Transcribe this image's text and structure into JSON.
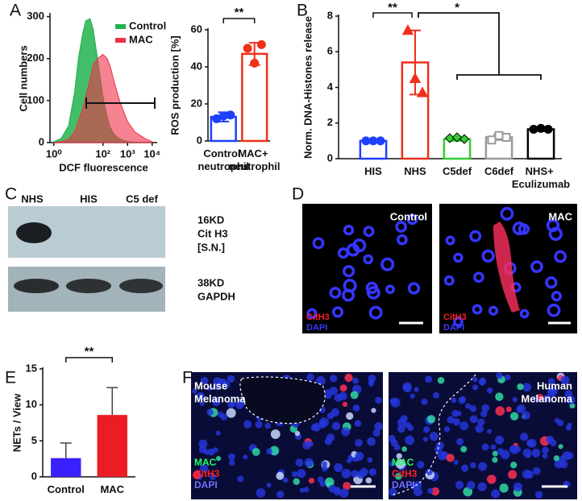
{
  "chart_data": [
    {
      "type": "area",
      "ylabel": "Cell numbers",
      "xlabel": "DCF fluorescence",
      "log_x": true,
      "legend": "top-right",
      "x": [
        1,
        2,
        4,
        7,
        10,
        15,
        20,
        30,
        40,
        60,
        100,
        150,
        200,
        300,
        500,
        1000,
        2000,
        5000,
        10000
      ],
      "series": [
        {
          "name": "Control",
          "color": "#22b14c",
          "values": [
            2,
            10,
            40,
            120,
            200,
            260,
            290,
            295,
            270,
            200,
            110,
            60,
            35,
            18,
            8,
            3,
            1,
            0,
            0
          ]
        },
        {
          "name": "MAC",
          "color": "#f0304a",
          "values": [
            0,
            2,
            8,
            25,
            50,
            80,
            110,
            150,
            185,
            200,
            210,
            200,
            180,
            140,
            95,
            50,
            25,
            10,
            2
          ]
        }
      ],
      "xlim": [
        0.7,
        16000
      ],
      "ylim": [
        0,
        305
      ],
      "xticks": [
        {
          "value": 1,
          "label": "10⁰"
        },
        {
          "value": 100,
          "label": "10²"
        },
        {
          "value": 1000,
          "label": "10³"
        },
        {
          "value": 10000,
          "label": "10⁴"
        }
      ],
      "yticks": [
        0,
        100,
        200,
        300
      ]
    },
    {
      "type": "bar",
      "ylabel": "ROS production [%]",
      "style": "outline",
      "categories": [
        "Control neutrophil",
        "MAC+ neutrophil"
      ],
      "values": [
        13,
        47
      ],
      "errors": [
        2.5,
        6
      ],
      "points": [
        [
          12,
          13.5,
          14
        ],
        [
          50,
          42,
          52
        ]
      ],
      "colors": [
        "#1f3fff",
        "#f0301a"
      ],
      "markers": [
        "circle",
        "circle"
      ],
      "ylim": [
        0,
        60
      ],
      "yticks": [
        0,
        20,
        40,
        60
      ],
      "annotations": [
        "**"
      ]
    },
    {
      "type": "bar",
      "ylabel": "Norm. DNA-Histones release",
      "style": "outline",
      "categories": [
        "HIS",
        "NHS",
        "C5def",
        "C6def",
        "NHS+ Eculizumab"
      ],
      "values": [
        1.0,
        5.4,
        1.1,
        1.2,
        1.65
      ],
      "errors": [
        0.05,
        1.8,
        0.1,
        0.15,
        0.1
      ],
      "points": [
        [
          1,
          1,
          1
        ],
        [
          7.2,
          4.5,
          3.7
        ],
        [
          1.15,
          1.2,
          1.1
        ],
        [
          1.05,
          1.3,
          1.2
        ],
        [
          1.65,
          1.7,
          1.65
        ]
      ],
      "colors": [
        "#1f3fff",
        "#f0301a",
        "#33cc33",
        "#999999",
        "#000000"
      ],
      "markers": [
        "circle",
        "triangle",
        "diamond",
        "square",
        "circle"
      ],
      "ylim": [
        0,
        8
      ],
      "yticks": [
        0,
        2,
        4,
        6,
        8
      ],
      "annotations": [
        "**",
        "*"
      ]
    },
    {
      "type": "bar",
      "ylabel": "NETs / View",
      "style": "filled",
      "categories": [
        "Control",
        "MAC"
      ],
      "values": [
        2.6,
        8.6
      ],
      "errors": [
        2.1,
        3.8
      ],
      "colors": [
        "#3a1fff",
        "#ec1c24"
      ],
      "ylim": [
        0,
        15
      ],
      "yticks": [
        0,
        5,
        10,
        15
      ],
      "annotations": [
        "**"
      ]
    }
  ],
  "figure": {
    "panels": [
      "A",
      "B",
      "C",
      "D",
      "E",
      "F"
    ],
    "blot": {
      "lanes": [
        "NHS",
        "HIS",
        "C5 def"
      ],
      "top": [
        "16KD",
        "Cit H3",
        "[S.N.]"
      ],
      "bottom": [
        "38KD",
        "GAPDH"
      ]
    },
    "panel_d": {
      "titles": [
        "Control",
        "MAC"
      ],
      "stains": [
        "CitH3",
        "DAPI"
      ]
    },
    "panel_f": {
      "mouse": [
        "Mouse",
        "Melanoma"
      ],
      "human": [
        "Human",
        "Melanoma"
      ],
      "stains": [
        "MAC",
        "CitH3",
        "DAPI"
      ]
    }
  }
}
